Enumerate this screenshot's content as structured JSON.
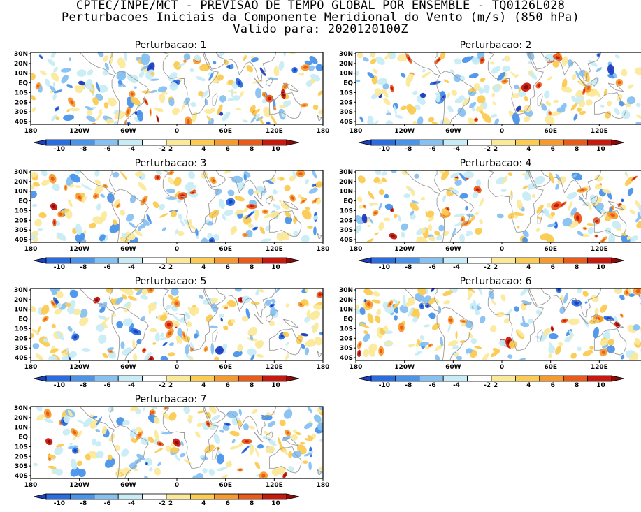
{
  "header": {
    "line1": "CPTEC/INPE/MCT - PREVISAO DE TEMPO GLOBAL POR ENSEMBLE - TQ0126L028",
    "line2": "Perturbacoes Iniciais da Componente Meridional do Vento (m/s) (850 hPa)",
    "line3": "Valido para: 2020120100Z"
  },
  "axes": {
    "lat_ticks": [
      "30N",
      "20N",
      "10N",
      "EQ",
      "10S",
      "20S",
      "30S",
      "40S"
    ],
    "lon_ticks": [
      "180",
      "120W",
      "60W",
      "0",
      "60E",
      "120E",
      "180"
    ]
  },
  "colorbar": {
    "labels": [
      "-10",
      "-8",
      "-6",
      "-4",
      "-2",
      "2",
      "4",
      "6",
      "8",
      "10"
    ],
    "colors": [
      "#1e3fbf",
      "#2a6de0",
      "#4a94ea",
      "#87c1f1",
      "#c8ecf6",
      "#ffffff",
      "#fbe99a",
      "#fbcb52",
      "#f79a2d",
      "#ea5a19",
      "#c9180e",
      "#8c0a0a"
    ]
  },
  "panels": [
    {
      "title": "Perturbacao: 1"
    },
    {
      "title": "Perturbacao: 2"
    },
    {
      "title": "Perturbacao: 3"
    },
    {
      "title": "Perturbacao: 4"
    },
    {
      "title": "Perturbacao: 5"
    },
    {
      "title": "Perturbacao: 6"
    },
    {
      "title": "Perturbacao: 7"
    }
  ]
}
